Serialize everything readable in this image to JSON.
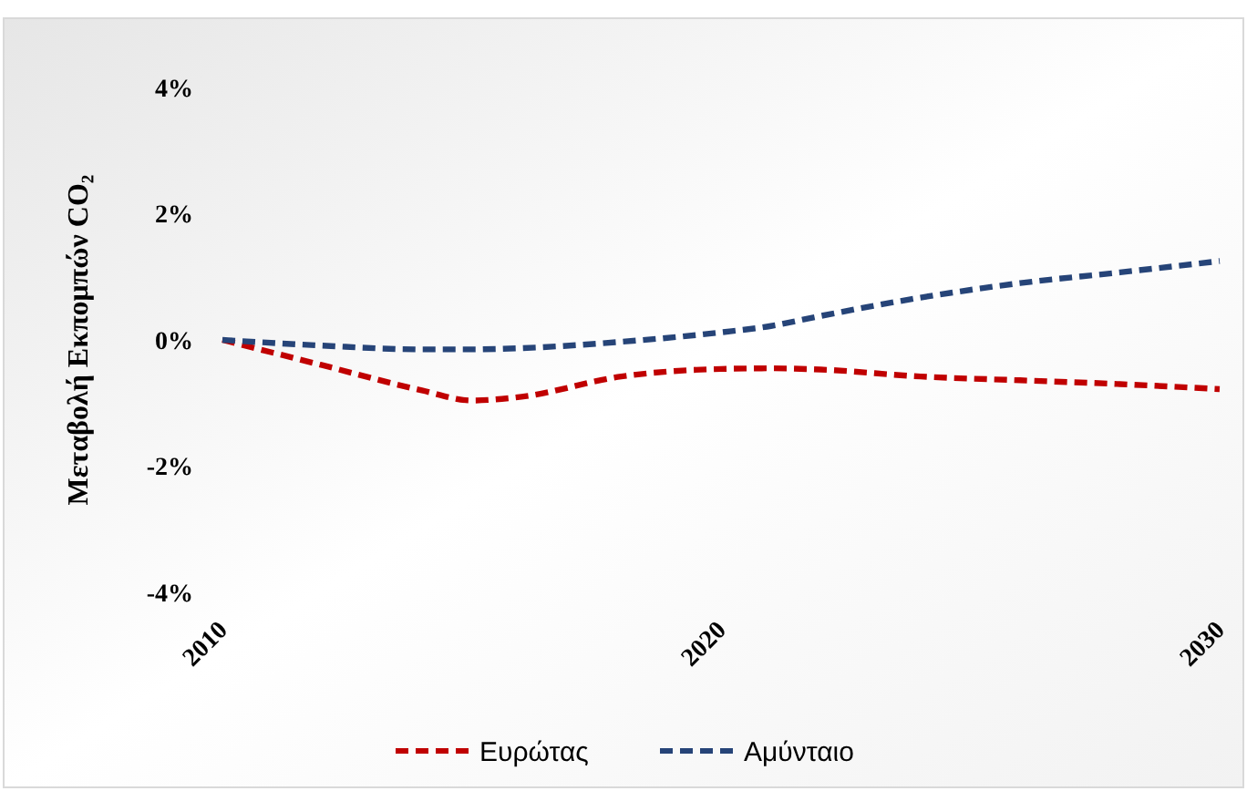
{
  "chart_data": {
    "type": "line",
    "ylabel": "Μεταβολή Εκπομπών CO₂",
    "x": [
      2010,
      2012,
      2014,
      2015,
      2016,
      2018,
      2020,
      2021,
      2022,
      2024,
      2026,
      2028,
      2030
    ],
    "series": [
      {
        "name": "Ευρώτας",
        "color": "#c00000",
        "values": [
          0,
          -0.4,
          -0.8,
          -0.96,
          -0.9,
          -0.58,
          -0.46,
          -0.45,
          -0.47,
          -0.58,
          -0.64,
          -0.7,
          -0.78
        ]
      },
      {
        "name": "Αμύνταιο",
        "color": "#264478",
        "values": [
          0,
          -0.09,
          -0.15,
          -0.15,
          -0.13,
          -0.03,
          0.12,
          0.22,
          0.38,
          0.67,
          0.9,
          1.07,
          1.25
        ]
      }
    ],
    "xlim": [
      2010,
      2030
    ],
    "xticks": [
      2010,
      2020,
      2030
    ],
    "ylim": [
      -4,
      4
    ],
    "yticks": [
      {
        "value": -4,
        "label": "-4%"
      },
      {
        "value": -2,
        "label": "-2%"
      },
      {
        "value": 0,
        "label": "0%"
      },
      {
        "value": 2,
        "label": "2%"
      },
      {
        "value": 4,
        "label": "4%"
      }
    ],
    "line_style": "dashed",
    "marker": "none",
    "grid": false,
    "legend": "bottom"
  }
}
